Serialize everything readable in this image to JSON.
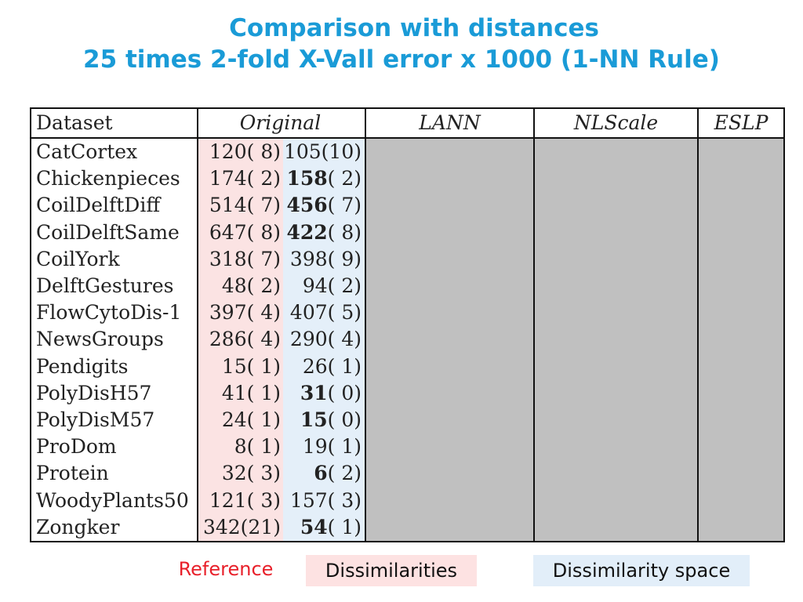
{
  "title": {
    "line1": "Comparison with distances",
    "line2": "25 times 2-fold X-Vall error x 1000 (1-NN Rule)"
  },
  "table": {
    "headers": {
      "dataset": "Dataset",
      "original": "Original",
      "lann": "LANN",
      "nlscale": "NLScale",
      "eslp": "ESLP"
    },
    "rows": [
      {
        "name": "CatCortex",
        "o1": "120( 8)",
        "o2_bold": "",
        "o2": "105(10)"
      },
      {
        "name": "Chickenpieces",
        "o1": "174( 2)",
        "o2_bold": "158",
        "o2": "( 2)"
      },
      {
        "name": "CoilDelftDiff",
        "o1": "514( 7)",
        "o2_bold": "456",
        "o2": "( 7)"
      },
      {
        "name": "CoilDelftSame",
        "o1": "647( 8)",
        "o2_bold": "422",
        "o2": "( 8)"
      },
      {
        "name": "CoilYork",
        "o1": "318( 7)",
        "o2_bold": "",
        "o2": "398( 9)"
      },
      {
        "name": "DelftGestures",
        "o1": "48( 2)",
        "o2_bold": "",
        "o2": "94( 2)"
      },
      {
        "name": "FlowCytoDis-1",
        "o1": "397( 4)",
        "o2_bold": "",
        "o2": "407( 5)"
      },
      {
        "name": "NewsGroups",
        "o1": "286( 4)",
        "o2_bold": "",
        "o2": "290( 4)"
      },
      {
        "name": "Pendigits",
        "o1": "15( 1)",
        "o2_bold": "",
        "o2": "26( 1)"
      },
      {
        "name": "PolyDisH57",
        "o1": "41( 1)",
        "o2_bold": "31",
        "o2": "( 0)"
      },
      {
        "name": "PolyDisM57",
        "o1": "24( 1)",
        "o2_bold": "15",
        "o2": "( 0)"
      },
      {
        "name": "ProDom",
        "o1": "8( 1)",
        "o2_bold": "",
        "o2": "19( 1)"
      },
      {
        "name": "Protein",
        "o1": "32( 3)",
        "o2_bold": "6",
        "o2": "( 2)"
      },
      {
        "name": "WoodyPlants50",
        "o1": "121( 3)",
        "o2_bold": "",
        "o2": "157( 3)"
      },
      {
        "name": "Zongker",
        "o1": "342(21)",
        "o2_bold": "54",
        "o2": "( 1)"
      }
    ]
  },
  "legend": {
    "reference": "Reference",
    "dissimilarities": "Dissimilarities",
    "dissimilarity_space": "Dissimilarity space"
  },
  "colors": {
    "title": "#1a9bd7",
    "reference_text": "#e8202a",
    "reference_fill": "#fbe3e3",
    "dissimilarity_fill": "#e4eff9",
    "masked_fill": "#c0c0c0"
  }
}
